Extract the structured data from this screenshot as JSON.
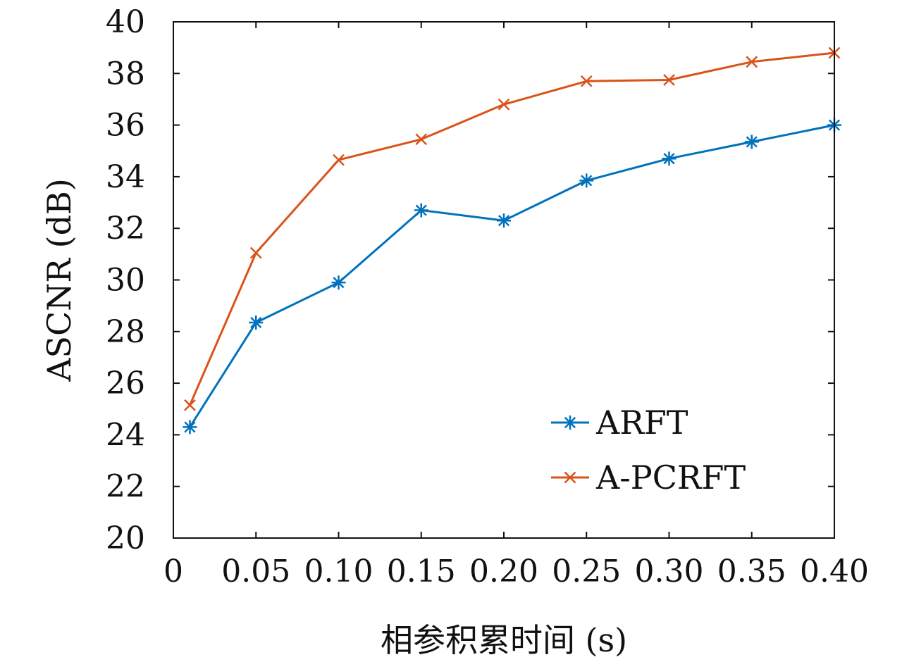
{
  "chart_data": {
    "type": "line",
    "xlabel": "相参积累时间 (s)",
    "ylabel": "ASCNR (dB)",
    "xlim": [
      0,
      0.4
    ],
    "ylim": [
      20,
      40
    ],
    "x_ticks": [
      {
        "value": 0,
        "label": "0"
      },
      {
        "value": 0.05,
        "label": "0.05"
      },
      {
        "value": 0.1,
        "label": "0.10"
      },
      {
        "value": 0.15,
        "label": "0.15"
      },
      {
        "value": 0.2,
        "label": "0.20"
      },
      {
        "value": 0.25,
        "label": "0.25"
      },
      {
        "value": 0.3,
        "label": "0.30"
      },
      {
        "value": 0.35,
        "label": "0.35"
      },
      {
        "value": 0.4,
        "label": "0.40"
      }
    ],
    "y_ticks": [
      {
        "value": 20,
        "label": "20"
      },
      {
        "value": 22,
        "label": "22"
      },
      {
        "value": 24,
        "label": "24"
      },
      {
        "value": 26,
        "label": "26"
      },
      {
        "value": 28,
        "label": "28"
      },
      {
        "value": 30,
        "label": "30"
      },
      {
        "value": 32,
        "label": "32"
      },
      {
        "value": 34,
        "label": "34"
      },
      {
        "value": 36,
        "label": "36"
      },
      {
        "value": 38,
        "label": "38"
      },
      {
        "value": 40,
        "label": "40"
      }
    ],
    "grid": false,
    "legend_position": "lower-right",
    "x": [
      0.01,
      0.05,
      0.1,
      0.15,
      0.2,
      0.25,
      0.3,
      0.35,
      0.4
    ],
    "series": [
      {
        "name": "ARFT",
        "color": "#0072BD",
        "marker": "asterisk",
        "values": [
          24.3,
          28.35,
          29.9,
          32.7,
          32.3,
          33.85,
          34.7,
          35.35,
          36.0
        ]
      },
      {
        "name": "A-PCRFT",
        "color": "#D95319",
        "marker": "x",
        "values": [
          25.15,
          31.05,
          34.65,
          35.45,
          36.8,
          37.7,
          37.75,
          38.45,
          38.8
        ]
      }
    ]
  }
}
